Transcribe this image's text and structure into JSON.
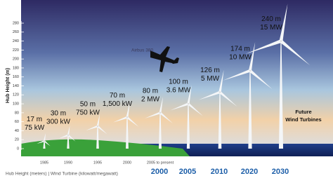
{
  "chart_data": {
    "type": "turbine",
    "y_label": "Hub Height (m)",
    "footer": "Hub Height (meters) | Wind Turbine (kilowatt/megawatt)",
    "annotation": "Airbus 380",
    "future_label": [
      "Future",
      "Wind Turbines"
    ],
    "categories": [
      "1985",
      "1990",
      "1995",
      "2000",
      "2005 to present",
      null,
      null,
      null,
      null
    ],
    "projection_categories": [
      null,
      null,
      null,
      null,
      "2000",
      "2005",
      "2010",
      "2020",
      "2030"
    ],
    "values": [
      17,
      30,
      50,
      70,
      80,
      100,
      126,
      174,
      240
    ],
    "value_labels": [
      "17 m",
      "30 m",
      "50 m",
      "70 m",
      "80 m",
      "100 m",
      "126 m",
      "174 m",
      "240 m"
    ],
    "power_labels": [
      "75 kW",
      "300 kW",
      "750 kW",
      "1,500 kW",
      "2 MW",
      "3.6 MW",
      "5 MW",
      "10 MW",
      "15 MW"
    ],
    "color": "#f4f6f8",
    "ylim": [
      0,
      280
    ],
    "yticks": [
      0,
      20,
      40,
      60,
      80,
      100,
      120,
      140,
      160,
      180,
      200,
      220,
      240,
      260,
      280
    ]
  }
}
